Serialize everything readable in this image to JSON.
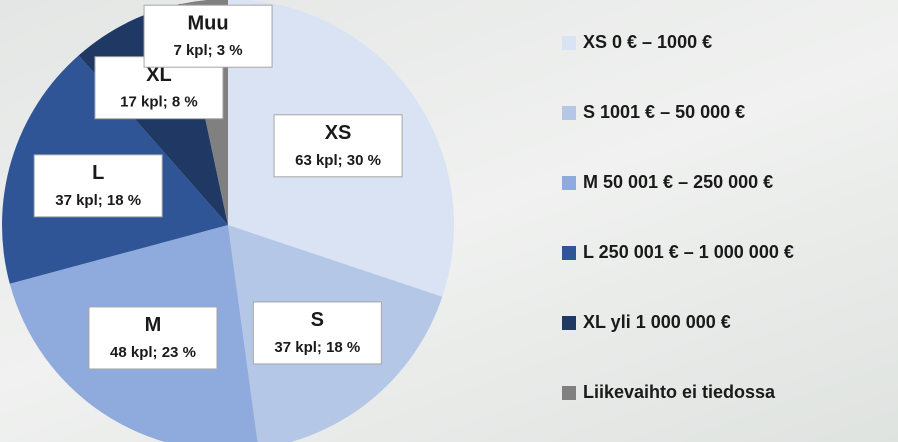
{
  "chart_data": {
    "type": "pie",
    "categories": [
      "XS",
      "S",
      "M",
      "L",
      "XL",
      "Muu"
    ],
    "values": [
      63,
      37,
      48,
      37,
      17,
      7
    ],
    "value_labels": [
      "63 kpl; 30 %",
      "37 kpl; 18 %",
      "48 kpl; 23 %",
      "37 kpl; 18 %",
      "17 kpl; 8 %",
      "7 kpl; 3 %"
    ],
    "colors": [
      "#dae3f3",
      "#b4c7e7",
      "#8faadc",
      "#2f5597",
      "#1f3864",
      "#808080"
    ],
    "legend": [
      "XS 0 € – 1000 €",
      "S 1001 € – 50 000 €",
      "M 50 001 € – 250 000 €",
      "L 250 001 € – 1 000 000 €",
      "XL yli 1 000 000 €",
      "Liikevaihto ei tiedossa"
    ]
  }
}
